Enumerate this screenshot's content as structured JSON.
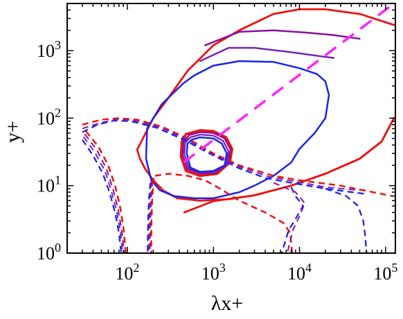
{
  "chart_data": {
    "type": "line",
    "title": "",
    "xlabel": "λx+",
    "ylabel": "y+",
    "xscale": "log",
    "yscale": "log",
    "xlim": [
      20,
      130000
    ],
    "ylim": [
      1,
      5000
    ],
    "grid": false,
    "legend": "none",
    "x_ticks": [
      {
        "value": 100,
        "base": "10",
        "exp": "2"
      },
      {
        "value": 1000,
        "base": "10",
        "exp": "3"
      },
      {
        "value": 10000,
        "base": "10",
        "exp": "4"
      },
      {
        "value": 100000,
        "base": "10",
        "exp": "5"
      }
    ],
    "y_ticks": [
      {
        "value": 1,
        "base": "10",
        "exp": "0"
      },
      {
        "value": 10,
        "base": "10",
        "exp": "1"
      },
      {
        "value": 100,
        "base": "10",
        "exp": "2"
      },
      {
        "value": 1000,
        "base": "10",
        "exp": "3"
      }
    ],
    "series": [
      {
        "color": "#ee1111",
        "dash": "solid",
        "width": 2.8,
        "points": [
          [
            460,
            4.02
          ],
          [
            1000,
            5.9
          ],
          [
            3000,
            7.2
          ],
          [
            8000,
            10
          ],
          [
            20000,
            15
          ],
          [
            50000,
            25
          ],
          [
            90000,
            45
          ],
          [
            125000,
            100
          ]
        ]
      },
      {
        "color": "#ee1111",
        "dash": "solid",
        "width": 2.8,
        "points": [
          [
            130,
            34
          ],
          [
            200,
            100
          ],
          [
            300,
            200
          ],
          [
            500,
            500
          ],
          [
            1000,
            1200
          ],
          [
            2000,
            2000
          ],
          [
            5000,
            3500
          ],
          [
            10000,
            4100
          ],
          [
            20000,
            4100
          ],
          [
            50000,
            3500
          ],
          [
            125000,
            2400
          ]
        ]
      },
      {
        "color": "#ee1111",
        "dash": "solid",
        "width": 2.8,
        "points": [
          [
            130,
            34
          ],
          [
            140,
            25
          ],
          [
            160,
            18
          ],
          [
            200,
            12
          ],
          [
            260,
            8.5
          ],
          [
            380,
            6.5
          ],
          [
            700,
            6
          ],
          [
            1500,
            6.3
          ],
          [
            3000,
            7.2
          ],
          [
            8000,
            10
          ],
          [
            20000,
            15
          ],
          [
            50000,
            25
          ],
          [
            90000,
            45
          ],
          [
            125000,
            100
          ]
        ]
      },
      {
        "color": "#881199",
        "dash": "solid",
        "width": 2.5,
        "points": [
          [
            800,
            1200
          ],
          [
            2000,
            1900
          ],
          [
            5000,
            2000
          ],
          [
            12000,
            1850
          ],
          [
            25000,
            1700
          ],
          [
            50000,
            1500
          ]
        ]
      },
      {
        "color": "#7722bb",
        "dash": "solid",
        "width": 2.5,
        "points": [
          [
            700,
            700
          ],
          [
            1500,
            1100
          ],
          [
            3000,
            1100
          ],
          [
            8000,
            950
          ],
          [
            18000,
            820
          ],
          [
            25000,
            780
          ]
        ]
      },
      {
        "color": "#1a22ee",
        "dash": "solid",
        "width": 2.5,
        "points": [
          [
            600,
            430
          ],
          [
            1000,
            600
          ],
          [
            2000,
            700
          ],
          [
            5000,
            680
          ],
          [
            10000,
            550
          ],
          [
            16000,
            450
          ],
          [
            20000,
            350
          ],
          [
            22000,
            220
          ],
          [
            20000,
            100
          ],
          [
            15000,
            60
          ],
          [
            10000,
            35
          ],
          [
            8000,
            22
          ],
          [
            5000,
            14
          ],
          [
            3000,
            10
          ],
          [
            2000,
            8
          ],
          [
            1000,
            6.5
          ],
          [
            600,
            6.5
          ],
          [
            350,
            7
          ],
          [
            240,
            8.5
          ],
          [
            190,
            12
          ],
          [
            165,
            25
          ],
          [
            170,
            70
          ],
          [
            250,
            160
          ],
          [
            450,
            330
          ],
          [
            600,
            430
          ]
        ]
      },
      {
        "color": "#ee1111",
        "dash": "solid",
        "width": 3.5,
        "points": [
          [
            480,
            58
          ],
          [
            700,
            66
          ],
          [
            1000,
            64
          ],
          [
            1400,
            52
          ],
          [
            1650,
            35
          ],
          [
            1550,
            22
          ],
          [
            1100,
            15
          ],
          [
            700,
            14
          ],
          [
            480,
            16.5
          ],
          [
            420,
            27
          ],
          [
            430,
            45
          ],
          [
            480,
            58
          ]
        ]
      },
      {
        "color": "#881199",
        "dash": "solid",
        "width": 2.3,
        "points": [
          [
            520,
            56
          ],
          [
            700,
            62
          ],
          [
            1000,
            60
          ],
          [
            1350,
            50
          ],
          [
            1580,
            34
          ],
          [
            1480,
            21
          ],
          [
            1050,
            15.5
          ],
          [
            700,
            15
          ],
          [
            500,
            17.5
          ],
          [
            440,
            28
          ],
          [
            450,
            44
          ],
          [
            520,
            56
          ]
        ]
      },
      {
        "color": "#7722bb",
        "dash": "solid",
        "width": 2.3,
        "points": [
          [
            540,
            52
          ],
          [
            700,
            57
          ],
          [
            1000,
            55
          ],
          [
            1300,
            46
          ],
          [
            1500,
            32
          ],
          [
            1420,
            20.5
          ],
          [
            1000,
            16
          ],
          [
            700,
            15.5
          ],
          [
            520,
            18
          ],
          [
            460,
            29
          ],
          [
            470,
            43
          ],
          [
            540,
            52
          ]
        ]
      },
      {
        "color": "#1a22ee",
        "dash": "solid",
        "width": 2.5,
        "points": [
          [
            560,
            48
          ],
          [
            700,
            52
          ],
          [
            1000,
            50
          ],
          [
            1250,
            42
          ],
          [
            1430,
            30
          ],
          [
            1350,
            20
          ],
          [
            1000,
            16.5
          ],
          [
            700,
            16
          ],
          [
            540,
            18.5
          ],
          [
            490,
            30
          ],
          [
            500,
            42
          ],
          [
            560,
            48
          ]
        ]
      },
      {
        "color": "#ee1111",
        "dash": "dashed",
        "width": 2.5,
        "points": [
          [
            30,
            80
          ],
          [
            50,
            95
          ],
          [
            80,
            100
          ],
          [
            130,
            95
          ],
          [
            250,
            75
          ],
          [
            500,
            50
          ],
          [
            1000,
            30
          ],
          [
            2000,
            20
          ],
          [
            5000,
            14
          ],
          [
            10000,
            12
          ],
          [
            30000,
            10
          ],
          [
            120000,
            7
          ]
        ]
      },
      {
        "color": "#1a22ee",
        "dash": "dashed",
        "width": 2.3,
        "points": [
          [
            30,
            62
          ],
          [
            45,
            80
          ],
          [
            70,
            92
          ],
          [
            110,
            90
          ],
          [
            220,
            72
          ],
          [
            450,
            48
          ],
          [
            1000,
            28
          ],
          [
            2000,
            18
          ],
          [
            4000,
            13
          ],
          [
            8000,
            11
          ],
          [
            20000,
            9
          ],
          [
            60000,
            7.5
          ]
        ]
      },
      {
        "color": "#7722bb",
        "dash": "dashed",
        "width": 2.0,
        "points": [
          [
            30,
            70
          ],
          [
            48,
            85
          ],
          [
            75,
            96
          ],
          [
            120,
            92
          ],
          [
            240,
            73
          ],
          [
            480,
            49
          ],
          [
            1000,
            29
          ],
          [
            2000,
            19
          ],
          [
            4500,
            13.5
          ],
          [
            9000,
            11.5
          ],
          [
            20000,
            9.5
          ],
          [
            50000,
            8.5
          ]
        ]
      },
      {
        "color": "#1a22ee",
        "dash": "dashed",
        "width": 2.3,
        "points": [
          [
            30,
            48
          ],
          [
            40,
            28
          ],
          [
            52,
            15
          ],
          [
            62,
            8
          ],
          [
            72,
            4
          ],
          [
            80,
            2
          ],
          [
            85,
            1
          ]
        ]
      },
      {
        "color": "#7722bb",
        "dash": "dashed",
        "width": 2.0,
        "points": [
          [
            31,
            53
          ],
          [
            42,
            31
          ],
          [
            55,
            16.5
          ],
          [
            65,
            8.5
          ],
          [
            75,
            4.2
          ],
          [
            83,
            2.1
          ],
          [
            88,
            1
          ]
        ]
      },
      {
        "color": "#881199",
        "dash": "dashed",
        "width": 2.0,
        "points": [
          [
            32,
            58
          ],
          [
            44,
            34
          ],
          [
            57,
            18
          ],
          [
            68,
            9
          ],
          [
            78,
            4.5
          ],
          [
            86,
            2.2
          ],
          [
            92,
            1
          ]
        ]
      },
      {
        "color": "#ee1111",
        "dash": "dashed",
        "width": 2.5,
        "points": [
          [
            33,
            64
          ],
          [
            46,
            38
          ],
          [
            60,
            20
          ],
          [
            72,
            10
          ],
          [
            82,
            5
          ],
          [
            90,
            2.4
          ],
          [
            96,
            1
          ]
        ]
      },
      {
        "color": "#1a22ee",
        "dash": "dashed",
        "width": 2.3,
        "points": [
          [
            185,
            11
          ],
          [
            178,
            6
          ],
          [
            174,
            3
          ],
          [
            173,
            1.7
          ],
          [
            172,
            1
          ]
        ]
      },
      {
        "color": "#7722bb",
        "dash": "dashed",
        "width": 2.0,
        "points": [
          [
            190,
            11.5
          ],
          [
            183,
            6
          ],
          [
            179,
            3
          ],
          [
            178,
            1.7
          ],
          [
            177,
            1
          ]
        ]
      },
      {
        "color": "#881199",
        "dash": "dashed",
        "width": 2.0,
        "points": [
          [
            196,
            12
          ],
          [
            189,
            6.2
          ],
          [
            185,
            3
          ],
          [
            184,
            1.7
          ],
          [
            183,
            1
          ]
        ]
      },
      {
        "color": "#ee1111",
        "dash": "dashed",
        "width": 2.5,
        "points": [
          [
            202,
            13
          ],
          [
            195,
            6.5
          ],
          [
            191,
            3.1
          ],
          [
            190,
            1.7
          ],
          [
            190,
            1
          ]
        ]
      },
      {
        "color": "#ee1111",
        "dash": "dashed",
        "width": 2.5,
        "points": [
          [
            210,
            14
          ],
          [
            300,
            15
          ],
          [
            500,
            14
          ],
          [
            800,
            12
          ],
          [
            1200,
            9
          ],
          [
            2000,
            6
          ],
          [
            4000,
            4
          ],
          [
            6500,
            2.8
          ],
          [
            7800,
            2
          ],
          [
            8200,
            1
          ]
        ]
      },
      {
        "color": "#1a22ee",
        "dash": "dashed",
        "width": 2.3,
        "points": [
          [
            8000,
            9.5
          ],
          [
            9000,
            7
          ],
          [
            11000,
            5
          ],
          [
            9000,
            3.2
          ],
          [
            7500,
            2.2
          ],
          [
            6200,
            1
          ]
        ]
      },
      {
        "color": "#881199",
        "dash": "dashed",
        "width": 2.0,
        "points": [
          [
            5000,
            11
          ],
          [
            9000,
            8
          ],
          [
            11500,
            5.5
          ],
          [
            10000,
            3.5
          ],
          [
            8500,
            2.3
          ],
          [
            7200,
            1
          ]
        ]
      },
      {
        "color": "#1a22ee",
        "dash": "dashed",
        "width": 2.3,
        "points": [
          [
            20000,
            9
          ],
          [
            35000,
            7
          ],
          [
            48000,
            5
          ],
          [
            55000,
            3
          ],
          [
            58000,
            1.8
          ],
          [
            60000,
            1
          ]
        ]
      },
      {
        "color": "#ff22ff",
        "dash": "longdash",
        "width": 3.5,
        "points": [
          [
            450,
            22
          ],
          [
            120000,
            4800
          ]
        ]
      }
    ]
  }
}
